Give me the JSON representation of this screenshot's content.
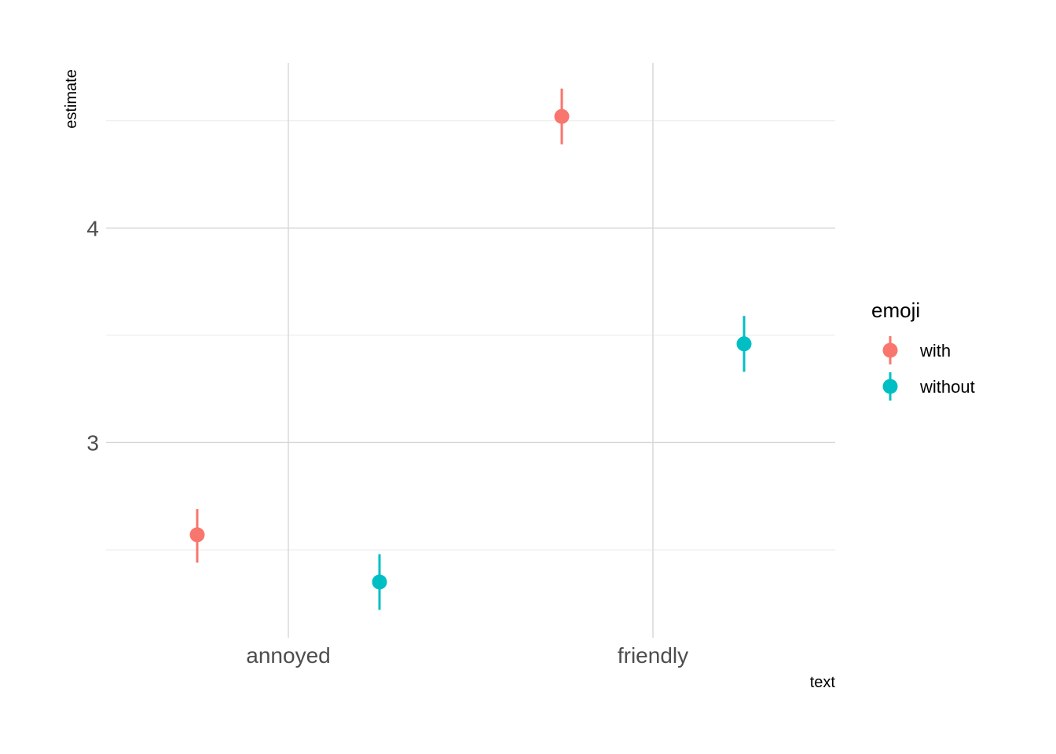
{
  "chart_data": {
    "type": "scatter",
    "subtype": "pointrange",
    "xlabel": "text",
    "ylabel": "estimate",
    "categories": [
      "annoyed",
      "friendly"
    ],
    "y_ticks": [
      3,
      4
    ],
    "y_minor_gridlines": [
      2.5,
      3.5,
      4.5
    ],
    "ylim": [
      2.09,
      4.77
    ],
    "grid": true,
    "legend": {
      "title": "emoji",
      "placement": "right"
    },
    "series": [
      {
        "name": "with",
        "color": "#F8766D",
        "points": [
          {
            "category": "annoyed",
            "estimate": 2.57,
            "lower": 2.44,
            "upper": 2.69
          },
          {
            "category": "friendly",
            "estimate": 4.52,
            "lower": 4.39,
            "upper": 4.65
          }
        ]
      },
      {
        "name": "without",
        "color": "#00BFC4",
        "points": [
          {
            "category": "annoyed",
            "estimate": 2.35,
            "lower": 2.22,
            "upper": 2.48
          },
          {
            "category": "friendly",
            "estimate": 3.46,
            "lower": 3.33,
            "upper": 3.59
          }
        ]
      }
    ]
  }
}
